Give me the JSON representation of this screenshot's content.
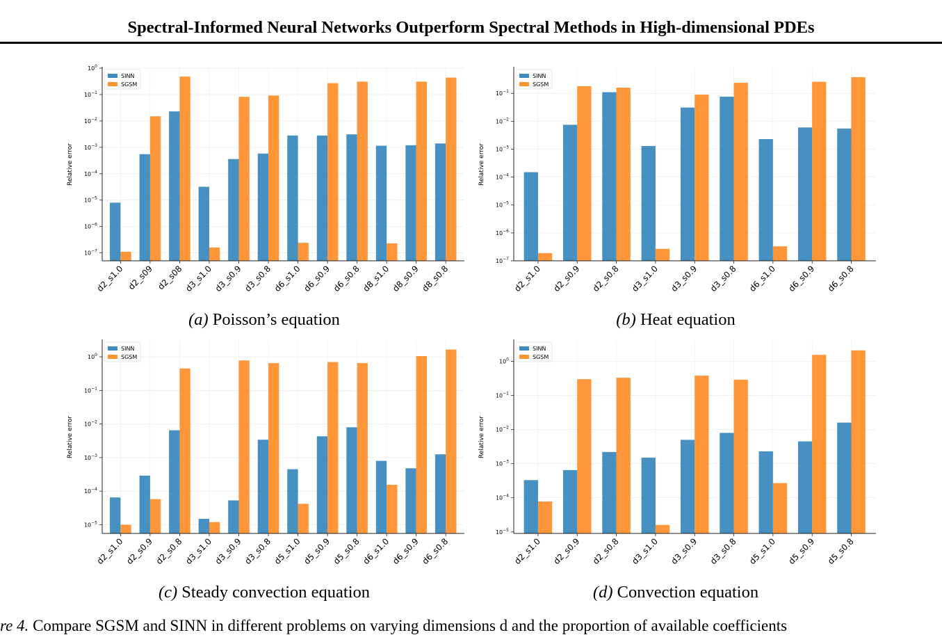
{
  "header": {
    "title": "Spectral-Informed Neural Networks Outperform Spectral Methods in High-dimensional PDEs"
  },
  "chart_data": [
    {
      "id": "a",
      "type": "bar",
      "caption_label": "(a)",
      "caption_text": "Poisson’s equation",
      "ylabel": "Relative error",
      "yscale": "log",
      "ylim": [
        5e-08,
        1
      ],
      "yticks": [
        {
          "v": 1e-07,
          "e": "−7"
        },
        {
          "v": 1e-06,
          "e": "−6"
        },
        {
          "v": 1e-05,
          "e": "−5"
        },
        {
          "v": 0.0001,
          "e": "−4"
        },
        {
          "v": 0.001,
          "e": "−3"
        },
        {
          "v": 0.01,
          "e": "−2"
        },
        {
          "v": 0.1,
          "e": "−1"
        },
        {
          "v": 1,
          "e": "0"
        }
      ],
      "legend_position": "top-left",
      "categories": [
        "d2_s1.0",
        "d2_s09",
        "d2_s08",
        "d3_s1.0",
        "d3_s0.9",
        "d3_s0.8",
        "d6_s1.0",
        "d6_s0.9",
        "d6_s0.8",
        "d8_s1.0",
        "d8_s0.9",
        "d8_s0.8"
      ],
      "series": [
        {
          "name": "SINN",
          "color": "#1f77b4",
          "values": [
            8e-06,
            0.00055,
            0.023,
            3.2e-05,
            0.00036,
            0.00058,
            0.0028,
            0.0028,
            0.0031,
            0.00115,
            0.0012,
            0.0014
          ]
        },
        {
          "name": "SGSM",
          "color": "#ff7f0e",
          "values": [
            1.1e-07,
            0.015,
            0.48,
            1.6e-07,
            0.082,
            0.092,
            2.4e-07,
            0.27,
            0.31,
            2.3e-07,
            0.31,
            0.44
          ]
        }
      ]
    },
    {
      "id": "b",
      "type": "bar",
      "caption_label": "(b)",
      "caption_text": "Heat equation",
      "ylabel": "Relative error",
      "yscale": "log",
      "ylim": [
        1e-07,
        0.8
      ],
      "yticks": [
        {
          "v": 1e-07,
          "e": "−7"
        },
        {
          "v": 1e-06,
          "e": "−6"
        },
        {
          "v": 1e-05,
          "e": "−5"
        },
        {
          "v": 0.0001,
          "e": "−4"
        },
        {
          "v": 0.001,
          "e": "−3"
        },
        {
          "v": 0.01,
          "e": "−2"
        },
        {
          "v": 0.1,
          "e": "−1"
        }
      ],
      "legend_position": "top-left",
      "categories": [
        "d2_s1.0",
        "d2_s0.9",
        "d2_s0.8",
        "d3_s1.0",
        "d3_s0.9",
        "d3_s0.8",
        "d6_s1.0",
        "d6_s0.9",
        "d6_s0.8"
      ],
      "series": [
        {
          "name": "SINN",
          "color": "#1f77b4",
          "values": [
            0.00015,
            0.0075,
            0.11,
            0.0013,
            0.031,
            0.076,
            0.0023,
            0.006,
            0.0055
          ]
        },
        {
          "name": "SGSM",
          "color": "#ff7f0e",
          "values": [
            1.9e-07,
            0.18,
            0.16,
            2.7e-07,
            0.09,
            0.24,
            3.3e-07,
            0.26,
            0.38
          ]
        }
      ]
    },
    {
      "id": "c",
      "type": "bar",
      "caption_label": "(c)",
      "caption_text": "Steady convection equation",
      "ylabel": "Relative error",
      "yscale": "log",
      "ylim": [
        5.5e-06,
        3
      ],
      "yticks": [
        {
          "v": 1e-05,
          "e": "−5"
        },
        {
          "v": 0.0001,
          "e": "−4"
        },
        {
          "v": 0.001,
          "e": "−3"
        },
        {
          "v": 0.01,
          "e": "−2"
        },
        {
          "v": 0.1,
          "e": "−1"
        },
        {
          "v": 1,
          "e": "0"
        }
      ],
      "legend_position": "top-left",
      "categories": [
        "d2_s1.0",
        "d2_s0.9",
        "d2_s0.8",
        "d3_s1.0",
        "d3_s0.9",
        "d3_s0.8",
        "d5_s1.0",
        "d5_s0.9",
        "d5_s0.8",
        "d6_s1.0",
        "d6_s0.9",
        "d6_s0.8"
      ],
      "series": [
        {
          "name": "SINN",
          "color": "#1f77b4",
          "values": [
            6.5e-05,
            0.00029,
            0.0065,
            1.5e-05,
            5.3e-05,
            0.0034,
            0.00045,
            0.0043,
            0.008,
            0.0008,
            0.00048,
            0.00125
          ]
        },
        {
          "name": "SGSM",
          "color": "#ff7f0e",
          "values": [
            1e-05,
            5.8e-05,
            0.45,
            1.2e-05,
            0.78,
            0.65,
            4.2e-05,
            0.7,
            0.65,
            0.000155,
            1.05,
            1.65
          ]
        }
      ]
    },
    {
      "id": "d",
      "type": "bar",
      "caption_label": "(d)",
      "caption_text": "Convection equation",
      "ylabel": "Relative error",
      "yscale": "log",
      "ylim": [
        9e-06,
        4
      ],
      "yticks": [
        {
          "v": 1e-05,
          "e": "−5"
        },
        {
          "v": 0.0001,
          "e": "−4"
        },
        {
          "v": 0.001,
          "e": "−3"
        },
        {
          "v": 0.01,
          "e": "−2"
        },
        {
          "v": 0.1,
          "e": "−1"
        },
        {
          "v": 1,
          "e": "0"
        }
      ],
      "legend_position": "top-left",
      "categories": [
        "d2_s1.0",
        "d2_s0.9",
        "d2_s0.8",
        "d3_s1.0",
        "d3_s0.9",
        "d3_s0.8",
        "d5_s1.0",
        "d5_s0.9",
        "d5_s0.8"
      ],
      "series": [
        {
          "name": "SINN",
          "color": "#1f77b4",
          "values": [
            0.00033,
            0.00065,
            0.0022,
            0.0015,
            0.005,
            0.008,
            0.0023,
            0.0045,
            0.016
          ]
        },
        {
          "name": "SGSM",
          "color": "#ff7f0e",
          "values": [
            7.8e-05,
            0.3,
            0.33,
            1.6e-05,
            0.38,
            0.29,
            0.00027,
            1.55,
            2.1
          ]
        }
      ]
    }
  ],
  "figure_caption": {
    "label": "re 4.",
    "text": "Compare SGSM and SINN in different problems on varying dimensions d and the proportion of available coefficients"
  }
}
